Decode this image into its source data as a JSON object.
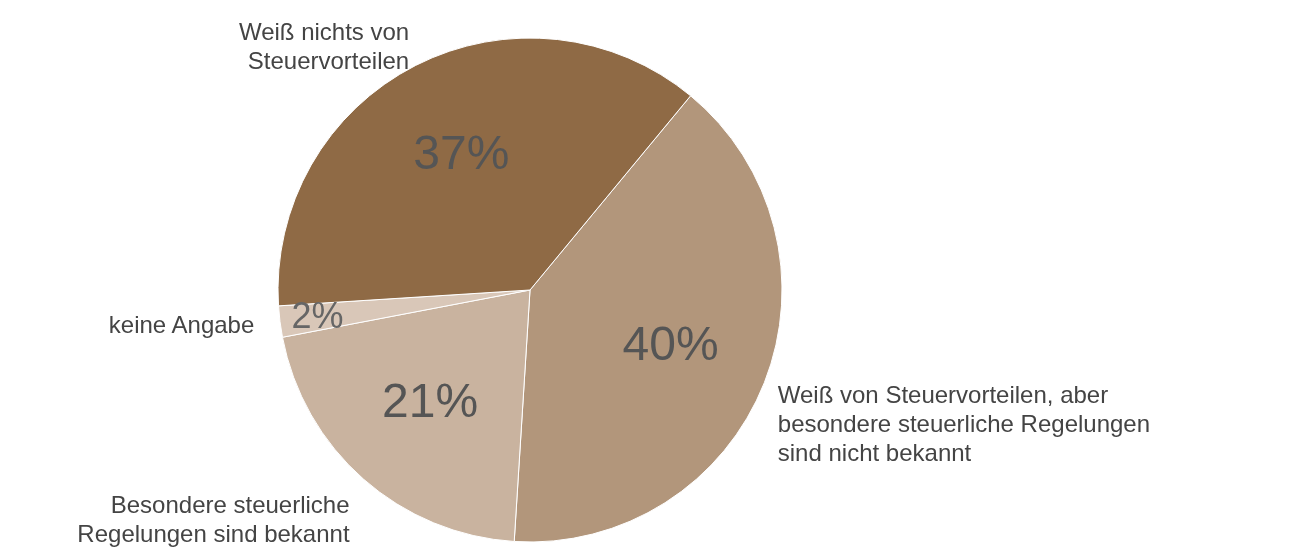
{
  "chart_data": {
    "type": "pie",
    "categories": [
      "Weiß von Steuervorteilen, aber besondere steuerliche Regelungen sind nicht bekannt",
      "Besondere steuerliche Regelungen sind bekannt",
      "keine Angabe",
      "Weiß nichts von Steuervorteilen"
    ],
    "values": [
      40,
      21,
      2,
      37
    ],
    "value_labels": [
      "40%",
      "21%",
      "2%",
      "37%"
    ],
    "colors": [
      "#b2967b",
      "#c9b39f",
      "#d9c7b8",
      "#8f6a45"
    ]
  }
}
